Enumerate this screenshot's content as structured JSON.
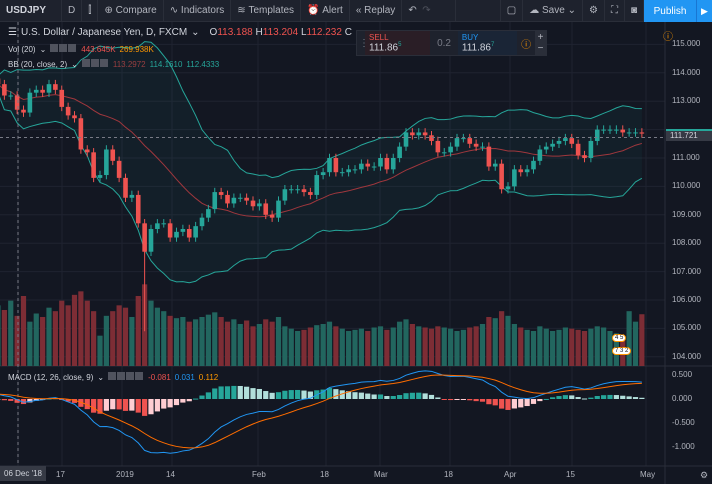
{
  "toolbar": {
    "symbol": "USDJPY",
    "interval": "D",
    "compare": "Compare",
    "indicators": "Indicators",
    "templates": "Templates",
    "alert": "Alert",
    "replay": "Replay",
    "save": "Save",
    "publish": "Publish"
  },
  "legend": {
    "title": "U.S. Dollar / Japanese Yen, D, FXCM",
    "o_label": "O",
    "o": "113.188",
    "h_label": "H",
    "h": "113.204",
    "l_label": "L",
    "l": "112.232",
    "c_label": "C",
    "vol": "Vol (20)",
    "vol_v1": "443.645K",
    "vol_v2": "269.938K",
    "bb": "BB (20, close, 2)",
    "bb_v1": "113.2972",
    "bb_v2": "114.1610",
    "bb_v3": "112.4333",
    "macd": "MACD (12, 26, close, 9)",
    "macd_v1": "-0.081",
    "macd_v2": "0.031",
    "macd_v3": "0.112"
  },
  "trade": {
    "sell_label": "SELL",
    "sell": "111.86",
    "sell_sup": "5",
    "spread": "0.2",
    "buy_label": "BUY",
    "buy": "111.86",
    "buy_sup": "7"
  },
  "price_axis": [
    "115.000",
    "114.000",
    "113.000",
    "112.000",
    "111.000",
    "110.000",
    "109.000",
    "108.000",
    "107.000",
    "106.000",
    "105.000",
    "104.000"
  ],
  "last_price": "111.721",
  "macd_axis": [
    "0.500",
    "0.000",
    "-0.500",
    "-1.000"
  ],
  "time_axis": [
    "06 Dec '18",
    "17",
    "2019",
    "14",
    "Feb",
    "18",
    "Mar",
    "18",
    "Apr",
    "15",
    "May"
  ],
  "events": {
    "a": "4 5",
    "b": "7 3 2"
  },
  "colors": {
    "up": "#26a69a",
    "down": "#ef5350",
    "macd": "#2196f3",
    "signal": "#ff6d00",
    "bb": "#26a69a",
    "accent": "#2196f3"
  },
  "chart_data": {
    "type": "candlestick",
    "ylim": [
      104,
      115.6
    ],
    "close": [
      113.6,
      113.2,
      113.2,
      112.7,
      112.6,
      113.3,
      113.4,
      113.3,
      113.6,
      113.4,
      112.8,
      112.5,
      112.4,
      111.3,
      111.2,
      110.3,
      110.4,
      111.3,
      110.9,
      110.3,
      109.6,
      109.7,
      108.7,
      107.7,
      108.5,
      108.7,
      108.7,
      108.2,
      108.4,
      108.5,
      108.2,
      108.6,
      108.9,
      109.2,
      109.8,
      109.7,
      109.4,
      109.6,
      109.6,
      109.5,
      109.3,
      109.4,
      109.0,
      108.9,
      109.5,
      109.9,
      109.9,
      109.9,
      109.8,
      109.7,
      110.4,
      110.5,
      111.0,
      110.5,
      110.5,
      110.6,
      110.6,
      110.8,
      110.7,
      110.7,
      111.0,
      110.6,
      111.0,
      111.4,
      111.9,
      111.8,
      111.9,
      111.8,
      111.6,
      111.2,
      111.2,
      111.4,
      111.7,
      111.7,
      111.5,
      111.4,
      111.4,
      110.7,
      110.8,
      109.9,
      110.0,
      110.6,
      110.5,
      110.6,
      110.9,
      111.3,
      111.4,
      111.5,
      111.6,
      111.7,
      111.5,
      111.1,
      111.0,
      111.6,
      112.0,
      112.0,
      112.0,
      112.0,
      111.9,
      111.9,
      111.9,
      111.86
    ],
    "flash_low": 104.9,
    "volume_k": [
      520,
      480,
      560,
      430,
      600,
      380,
      450,
      420,
      500,
      470,
      560,
      520,
      610,
      640,
      560,
      470,
      260,
      430,
      470,
      520,
      500,
      420,
      600,
      700,
      560,
      500,
      470,
      430,
      410,
      420,
      380,
      400,
      420,
      440,
      460,
      420,
      380,
      400,
      360,
      390,
      340,
      360,
      400,
      380,
      420,
      340,
      320,
      300,
      310,
      330,
      350,
      360,
      380,
      340,
      320,
      300,
      310,
      320,
      300,
      330,
      340,
      310,
      330,
      380,
      400,
      360,
      340,
      330,
      320,
      340,
      330,
      320,
      300,
      310,
      330,
      340,
      360,
      420,
      410,
      470,
      430,
      360,
      330,
      310,
      300,
      340,
      320,
      300,
      310,
      330,
      320,
      310,
      300,
      320,
      340,
      330,
      300,
      280,
      260,
      470,
      380,
      443.645
    ]
  }
}
